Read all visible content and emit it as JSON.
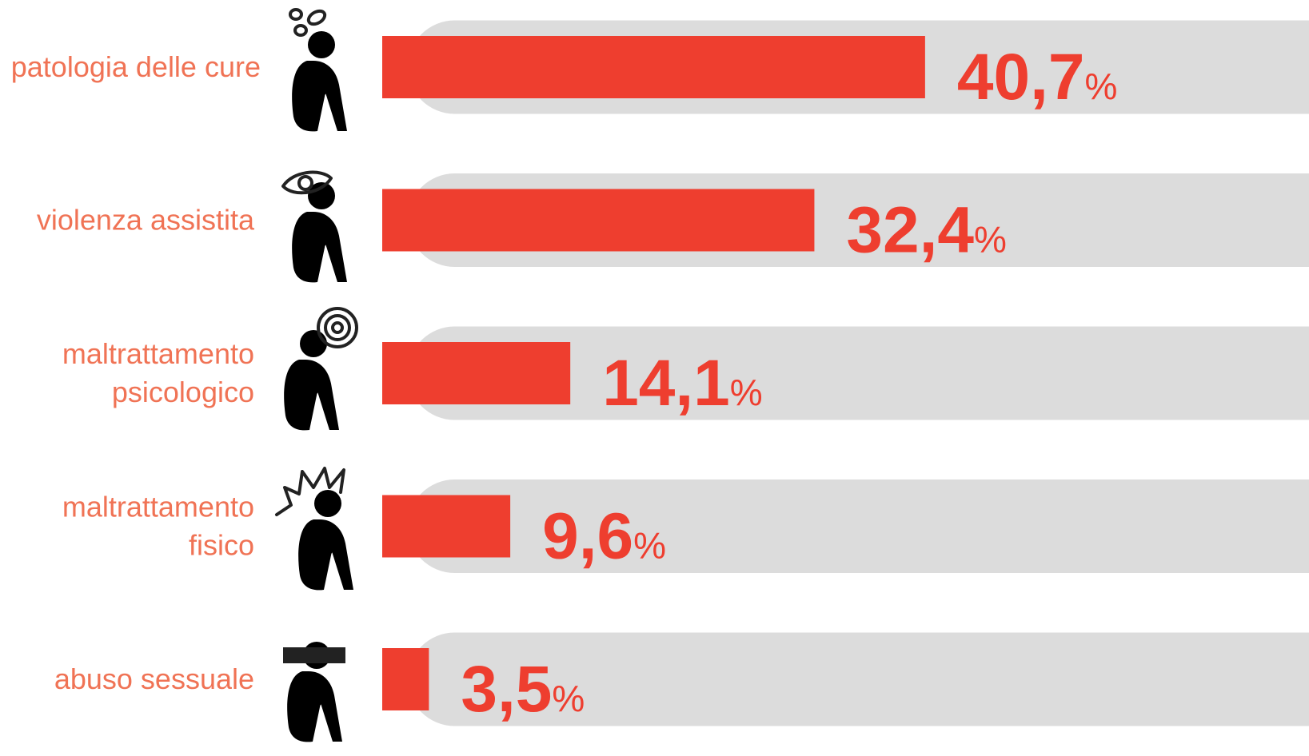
{
  "chart_data": {
    "type": "bar",
    "categories": [
      "patologia delle cure",
      "violenza assistita",
      "maltrattamento\npsicologico",
      "maltrattamento\nfisico",
      "abuso sessuale"
    ],
    "values": [
      40.7,
      32.4,
      14.1,
      9.6,
      3.5
    ],
    "value_labels": [
      "40,7%",
      "32,4%",
      "14,1%",
      "9,6%",
      "3,5%"
    ],
    "color": "#ee3e2f",
    "track_color": "#dcdcdc"
  }
}
